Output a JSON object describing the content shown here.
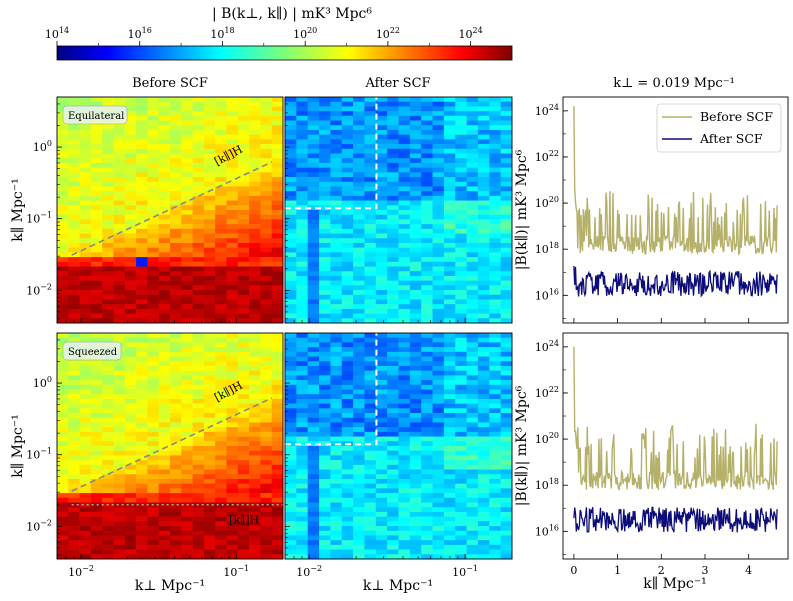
{
  "chart_data": [
    {
      "type": "heatmap",
      "colorbar": {
        "label": "| B(k⊥, k∥) | mK³ Mpc⁶",
        "scale": "log",
        "range": [
          100000000000000.0,
          1e+25
        ],
        "ticks": [
          {
            "base": "10",
            "exp": "14"
          },
          {
            "base": "10",
            "exp": "16"
          },
          {
            "base": "10",
            "exp": "18"
          },
          {
            "base": "10",
            "exp": "20"
          },
          {
            "base": "10",
            "exp": "22"
          },
          {
            "base": "10",
            "exp": "24"
          }
        ]
      },
      "panels": [
        {
          "title": "Before SCF",
          "row": "Equilateral",
          "line_label": "[k∥]H"
        },
        {
          "title": "After SCF",
          "row": "Equilateral"
        },
        {
          "row": "Squeezed",
          "line_label": "[k∥]H",
          "hline_label": "[k∥]H"
        },
        {
          "row": "Squeezed"
        }
      ],
      "x": {
        "label": "k⊥ Mpc⁻¹",
        "scale": "log",
        "range": [
          0.007,
          0.2
        ],
        "ticks": [
          {
            "base": "10",
            "exp": "−2"
          },
          {
            "base": "10",
            "exp": "−1"
          }
        ]
      },
      "y": {
        "label": "k∥ Mpc⁻¹",
        "scale": "log",
        "range": [
          0.0035,
          5
        ],
        "ticks": [
          {
            "base": "10",
            "exp": "0"
          },
          {
            "base": "10",
            "exp": "−1"
          },
          {
            "base": "10",
            "exp": "−2"
          }
        ]
      },
      "wedge": {
        "start": [
          0.0087,
          0.031
        ],
        "end": [
          0.17,
          0.62
        ]
      },
      "scf_cut": {
        "k_perp": 0.027,
        "k_par_equilateral": 0.14,
        "k_par_squeezed": 0.14
      },
      "squeezed_hline": 0.02
    },
    {
      "type": "line",
      "title": "k⊥ = 0.019 Mpc⁻¹",
      "xlabel": "k∥ Mpc⁻¹",
      "ylabel": "|B(k∥)| mK³ Mpc⁶",
      "xlim": [
        -0.25,
        4.9
      ],
      "ylim_log10": [
        14.8,
        24.6
      ],
      "xticks": [
        "0",
        "1",
        "2",
        "3",
        "4"
      ],
      "yticks": [
        {
          "base": "10",
          "exp": "16"
        },
        {
          "base": "10",
          "exp": "18"
        },
        {
          "base": "10",
          "exp": "20"
        },
        {
          "base": "10",
          "exp": "22"
        },
        {
          "base": "10",
          "exp": "24"
        }
      ],
      "legend": {
        "position": "top-right",
        "entries": [
          "Before SCF",
          "After SCF"
        ]
      },
      "series": [
        {
          "name": "Before SCF",
          "color": "#b5b06a",
          "log10_peak_top": 24.2,
          "log10_peak_bottom": 24.0,
          "log10_floor": 17.8
        },
        {
          "name": "After SCF",
          "color": "#0c0c7a",
          "log10_level": 16.5
        }
      ]
    }
  ]
}
